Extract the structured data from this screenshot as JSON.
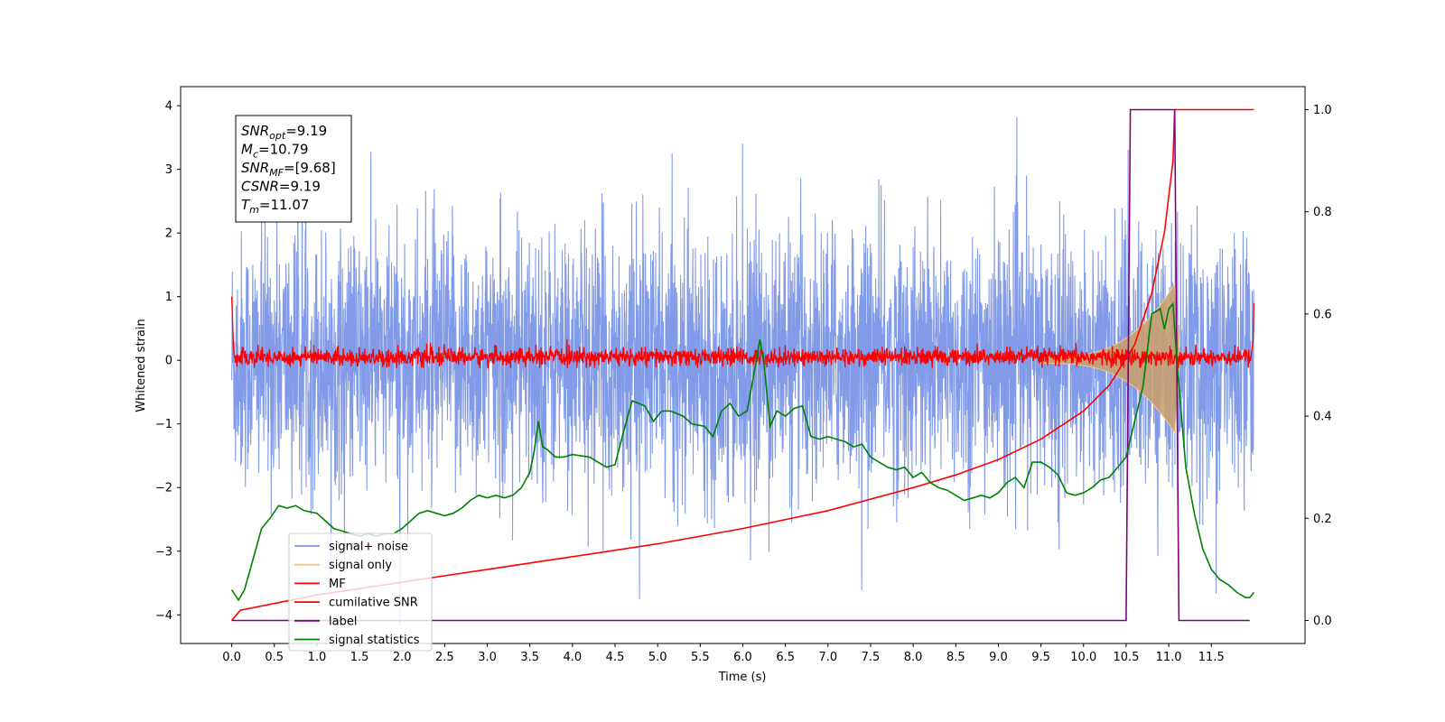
{
  "chart_data": {
    "type": "line",
    "title": "",
    "xlabel": "Time (s)",
    "ylabel": "Whitened strain",
    "xlim": [
      -0.6,
      12.6
    ],
    "ylim": [
      -4.45,
      4.3
    ],
    "y2lim": [
      -0.045,
      1.045
    ],
    "x_ticks": [
      0.0,
      0.5,
      1.0,
      1.5,
      2.0,
      2.5,
      3.0,
      3.5,
      4.0,
      4.5,
      5.0,
      5.5,
      6.0,
      6.5,
      7.0,
      7.5,
      8.0,
      8.5,
      9.0,
      9.5,
      10.0,
      10.5,
      11.0,
      11.5
    ],
    "x_tick_labels": [
      "0.0",
      "0.5",
      "1.0",
      "1.5",
      "2.0",
      "2.5",
      "3.0",
      "3.5",
      "4.0",
      "4.5",
      "5.0",
      "5.5",
      "6.0",
      "6.5",
      "7.0",
      "7.5",
      "8.0",
      "8.5",
      "9.0",
      "9.5",
      "10.0",
      "10.5",
      "11.0",
      "11.5"
    ],
    "y_ticks": [
      -4,
      -3,
      -2,
      -1,
      0,
      1,
      2,
      3,
      4
    ],
    "y_tick_labels": [
      "−4",
      "−3",
      "−2",
      "−1",
      "0",
      "1",
      "2",
      "3",
      "4"
    ],
    "y2_ticks": [
      0.0,
      0.2,
      0.4,
      0.6,
      0.8,
      1.0
    ],
    "y2_tick_labels": [
      "0.0",
      "0.2",
      "0.4",
      "0.6",
      "0.8",
      "1.0"
    ],
    "grid": false,
    "legend_position": "lower-left",
    "annotation": {
      "lines": [
        {
          "base": "SNR",
          "sub": "opt",
          "value": "=9.19"
        },
        {
          "base": "M",
          "sub": "c",
          "value": "=10.79"
        },
        {
          "base": "SNR",
          "sub": "MF",
          "value": "=[9.68]"
        },
        {
          "base": "CSNR",
          "sub": "",
          "value": "=9.19"
        },
        {
          "base": "T",
          "sub": "m",
          "value": "=11.07"
        }
      ]
    },
    "series": [
      {
        "name": "signal+ noise",
        "color": "#7b96e8",
        "axis": "left",
        "x_range": [
          0.0,
          12.0
        ],
        "envelope_approx": {
          "upper": 2.2,
          "lower": -2.1,
          "peak_max": 3.87,
          "peak_min": -4.15
        }
      },
      {
        "name": "signal only",
        "color": "#f5c880",
        "axis": "left",
        "chirp_start": 9.5,
        "merger_time": 11.07,
        "amp_start": 0.05,
        "amp_peak": 1.2
      },
      {
        "name": "MF",
        "color": "#ff0000",
        "axis": "left",
        "x_range": [
          0.0,
          12.0
        ],
        "band": [
          -0.12,
          0.25
        ],
        "edge_values": [
          1.0,
          0.9
        ]
      },
      {
        "name": "cumilative SNR",
        "color": "#ff0000",
        "axis": "right",
        "points": [
          [
            0.0,
            0.0
          ],
          [
            0.1,
            0.02
          ],
          [
            1.0,
            0.05
          ],
          [
            2.0,
            0.075
          ],
          [
            3.0,
            0.1
          ],
          [
            4.0,
            0.125
          ],
          [
            5.0,
            0.15
          ],
          [
            6.0,
            0.18
          ],
          [
            7.0,
            0.215
          ],
          [
            8.0,
            0.26
          ],
          [
            8.5,
            0.285
          ],
          [
            9.0,
            0.315
          ],
          [
            9.5,
            0.355
          ],
          [
            10.0,
            0.41
          ],
          [
            10.3,
            0.46
          ],
          [
            10.6,
            0.54
          ],
          [
            10.8,
            0.64
          ],
          [
            10.95,
            0.76
          ],
          [
            11.05,
            0.9
          ],
          [
            11.07,
            1.0
          ],
          [
            12.0,
            1.0
          ]
        ]
      },
      {
        "name": "label",
        "color": "#800080",
        "axis": "right",
        "points": [
          [
            0.0,
            0.0
          ],
          [
            10.5,
            0.0
          ],
          [
            10.55,
            1.0
          ],
          [
            11.07,
            1.0
          ],
          [
            11.12,
            0.0
          ],
          [
            11.95,
            0.0
          ]
        ]
      },
      {
        "name": "signal statistics",
        "color": "#008000",
        "axis": "right",
        "points": [
          [
            0.0,
            0.06
          ],
          [
            0.08,
            0.04
          ],
          [
            0.15,
            0.06
          ],
          [
            0.25,
            0.12
          ],
          [
            0.35,
            0.18
          ],
          [
            0.45,
            0.2
          ],
          [
            0.55,
            0.225
          ],
          [
            0.65,
            0.22
          ],
          [
            0.75,
            0.225
          ],
          [
            0.85,
            0.215
          ],
          [
            1.0,
            0.21
          ],
          [
            1.1,
            0.195
          ],
          [
            1.2,
            0.18
          ],
          [
            1.3,
            0.175
          ],
          [
            1.4,
            0.17
          ],
          [
            1.5,
            0.165
          ],
          [
            1.6,
            0.17
          ],
          [
            1.7,
            0.165
          ],
          [
            1.8,
            0.17
          ],
          [
            1.9,
            0.17
          ],
          [
            2.0,
            0.18
          ],
          [
            2.1,
            0.195
          ],
          [
            2.2,
            0.21
          ],
          [
            2.3,
            0.215
          ],
          [
            2.4,
            0.21
          ],
          [
            2.5,
            0.205
          ],
          [
            2.6,
            0.21
          ],
          [
            2.7,
            0.22
          ],
          [
            2.8,
            0.235
          ],
          [
            2.9,
            0.245
          ],
          [
            3.0,
            0.24
          ],
          [
            3.1,
            0.245
          ],
          [
            3.2,
            0.24
          ],
          [
            3.3,
            0.245
          ],
          [
            3.4,
            0.26
          ],
          [
            3.5,
            0.29
          ],
          [
            3.55,
            0.33
          ],
          [
            3.6,
            0.39
          ],
          [
            3.65,
            0.34
          ],
          [
            3.7,
            0.335
          ],
          [
            3.8,
            0.32
          ],
          [
            3.9,
            0.32
          ],
          [
            4.0,
            0.325
          ],
          [
            4.2,
            0.32
          ],
          [
            4.4,
            0.3
          ],
          [
            4.5,
            0.305
          ],
          [
            4.6,
            0.37
          ],
          [
            4.7,
            0.43
          ],
          [
            4.85,
            0.42
          ],
          [
            4.95,
            0.39
          ],
          [
            5.05,
            0.41
          ],
          [
            5.15,
            0.41
          ],
          [
            5.3,
            0.4
          ],
          [
            5.4,
            0.385
          ],
          [
            5.55,
            0.38
          ],
          [
            5.65,
            0.36
          ],
          [
            5.75,
            0.41
          ],
          [
            5.85,
            0.425
          ],
          [
            5.95,
            0.4
          ],
          [
            6.05,
            0.41
          ],
          [
            6.15,
            0.5
          ],
          [
            6.2,
            0.55
          ],
          [
            6.25,
            0.5
          ],
          [
            6.32,
            0.38
          ],
          [
            6.4,
            0.41
          ],
          [
            6.5,
            0.4
          ],
          [
            6.6,
            0.415
          ],
          [
            6.7,
            0.42
          ],
          [
            6.8,
            0.36
          ],
          [
            6.9,
            0.355
          ],
          [
            7.0,
            0.36
          ],
          [
            7.1,
            0.355
          ],
          [
            7.2,
            0.35
          ],
          [
            7.3,
            0.34
          ],
          [
            7.4,
            0.345
          ],
          [
            7.5,
            0.32
          ],
          [
            7.6,
            0.31
          ],
          [
            7.7,
            0.3
          ],
          [
            7.8,
            0.295
          ],
          [
            7.9,
            0.3
          ],
          [
            8.0,
            0.28
          ],
          [
            8.1,
            0.29
          ],
          [
            8.2,
            0.27
          ],
          [
            8.3,
            0.26
          ],
          [
            8.4,
            0.255
          ],
          [
            8.5,
            0.245
          ],
          [
            8.6,
            0.235
          ],
          [
            8.7,
            0.24
          ],
          [
            8.8,
            0.245
          ],
          [
            8.9,
            0.24
          ],
          [
            9.0,
            0.25
          ],
          [
            9.1,
            0.27
          ],
          [
            9.2,
            0.28
          ],
          [
            9.3,
            0.26
          ],
          [
            9.4,
            0.31
          ],
          [
            9.5,
            0.31
          ],
          [
            9.6,
            0.3
          ],
          [
            9.7,
            0.285
          ],
          [
            9.8,
            0.25
          ],
          [
            9.9,
            0.245
          ],
          [
            10.0,
            0.25
          ],
          [
            10.1,
            0.26
          ],
          [
            10.2,
            0.275
          ],
          [
            10.3,
            0.28
          ],
          [
            10.4,
            0.3
          ],
          [
            10.5,
            0.32
          ],
          [
            10.6,
            0.39
          ],
          [
            10.7,
            0.46
          ],
          [
            10.8,
            0.6
          ],
          [
            10.9,
            0.61
          ],
          [
            10.95,
            0.57
          ],
          [
            11.0,
            0.61
          ],
          [
            11.05,
            0.62
          ],
          [
            11.1,
            0.5
          ],
          [
            11.2,
            0.3
          ],
          [
            11.3,
            0.21
          ],
          [
            11.4,
            0.14
          ],
          [
            11.5,
            0.1
          ],
          [
            11.6,
            0.08
          ],
          [
            11.7,
            0.07
          ],
          [
            11.8,
            0.055
          ],
          [
            11.9,
            0.045
          ],
          [
            11.95,
            0.045
          ],
          [
            12.0,
            0.055
          ]
        ]
      }
    ]
  }
}
